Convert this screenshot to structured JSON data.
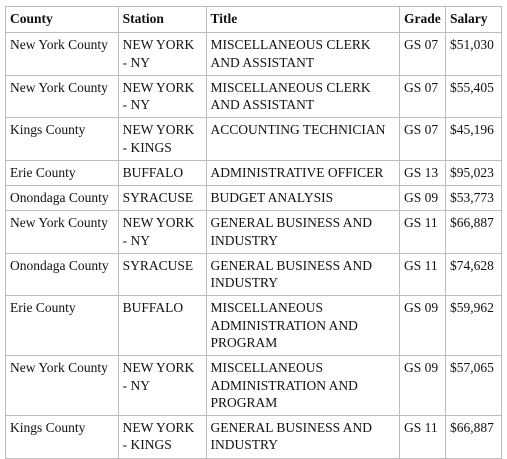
{
  "table": {
    "headers": {
      "county": "County",
      "station": "Station",
      "title": "Title",
      "grade": "Grade",
      "salary": "Salary"
    },
    "rows": [
      {
        "county": "New York County",
        "station": "NEW YORK - NY",
        "title": "MISCELLANEOUS CLERK AND ASSISTANT",
        "grade": "GS 07",
        "salary": "$51,030"
      },
      {
        "county": "New York County",
        "station": "NEW YORK - NY",
        "title": "MISCELLANEOUS CLERK AND ASSISTANT",
        "grade": "GS 07",
        "salary": "$55,405"
      },
      {
        "county": "Kings County",
        "station": "NEW YORK - KINGS",
        "title": "ACCOUNTING TECHNICIAN",
        "grade": "GS 07",
        "salary": "$45,196"
      },
      {
        "county": "Erie County",
        "station": "BUFFALO",
        "title": "ADMINISTRATIVE OFFICER",
        "grade": "GS 13",
        "salary": "$95,023"
      },
      {
        "county": "Onondaga County",
        "station": "SYRACUSE",
        "title": "BUDGET ANALYSIS",
        "grade": "GS 09",
        "salary": "$53,773"
      },
      {
        "county": "New York County",
        "station": "NEW YORK - NY",
        "title": "GENERAL BUSINESS AND INDUSTRY",
        "grade": "GS 11",
        "salary": "$66,887"
      },
      {
        "county": "Onondaga County",
        "station": "SYRACUSE",
        "title": "GENERAL BUSINESS AND INDUSTRY",
        "grade": "GS 11",
        "salary": "$74,628"
      },
      {
        "county": "Erie County",
        "station": "BUFFALO",
        "title": "MISCELLANEOUS ADMINISTRATION AND PROGRAM",
        "grade": "GS 09",
        "salary": "$59,962"
      },
      {
        "county": "New York County",
        "station": "NEW YORK - NY",
        "title": "MISCELLANEOUS ADMINISTRATION AND PROGRAM",
        "grade": "GS 09",
        "salary": "$57,065"
      },
      {
        "county": "Kings County",
        "station": "NEW YORK - KINGS",
        "title": "GENERAL BUSINESS AND INDUSTRY",
        "grade": "GS 11",
        "salary": "$66,887"
      }
    ]
  }
}
